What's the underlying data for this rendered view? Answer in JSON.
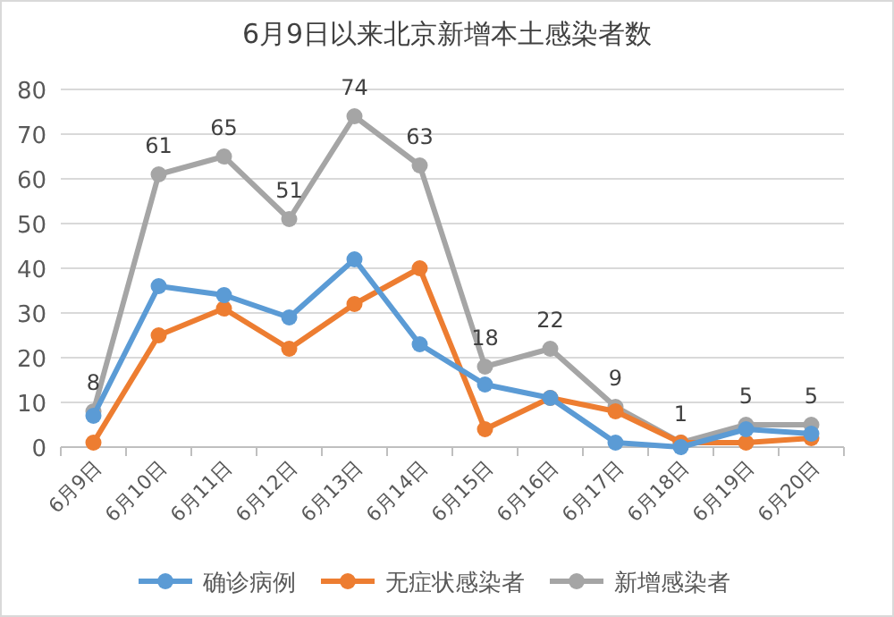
{
  "chart_data": {
    "type": "line",
    "title": "6月9日以来北京新增本土感染者数",
    "categories": [
      "6月9日",
      "6月10日",
      "6月11日",
      "6月12日",
      "6月13日",
      "6月14日",
      "6月15日",
      "6月16日",
      "6月17日",
      "6月18日",
      "6月19日",
      "6月20日"
    ],
    "series": [
      {
        "name": "确诊病例",
        "color": "#5b9bd5",
        "values": [
          7,
          36,
          34,
          29,
          42,
          23,
          14,
          11,
          1,
          0,
          4,
          3
        ]
      },
      {
        "name": "无症状感染者",
        "color": "#ed7d31",
        "values": [
          1,
          25,
          31,
          22,
          32,
          40,
          4,
          11,
          8,
          1,
          1,
          2
        ]
      },
      {
        "name": "新增感染者",
        "color": "#a5a5a5",
        "values": [
          8,
          61,
          65,
          51,
          74,
          63,
          18,
          22,
          9,
          1,
          5,
          5
        ],
        "value_labels": [
          "8",
          "61",
          "65",
          "51",
          "74",
          "63",
          "18",
          "22",
          "9",
          "1",
          "5",
          "5"
        ]
      }
    ],
    "ylim": [
      0,
      80
    ],
    "yticks": [
      0,
      10,
      20,
      30,
      40,
      50,
      60,
      70,
      80
    ],
    "grid": "y",
    "legend": "bottom",
    "marker": "circle",
    "line_style": "solid"
  }
}
